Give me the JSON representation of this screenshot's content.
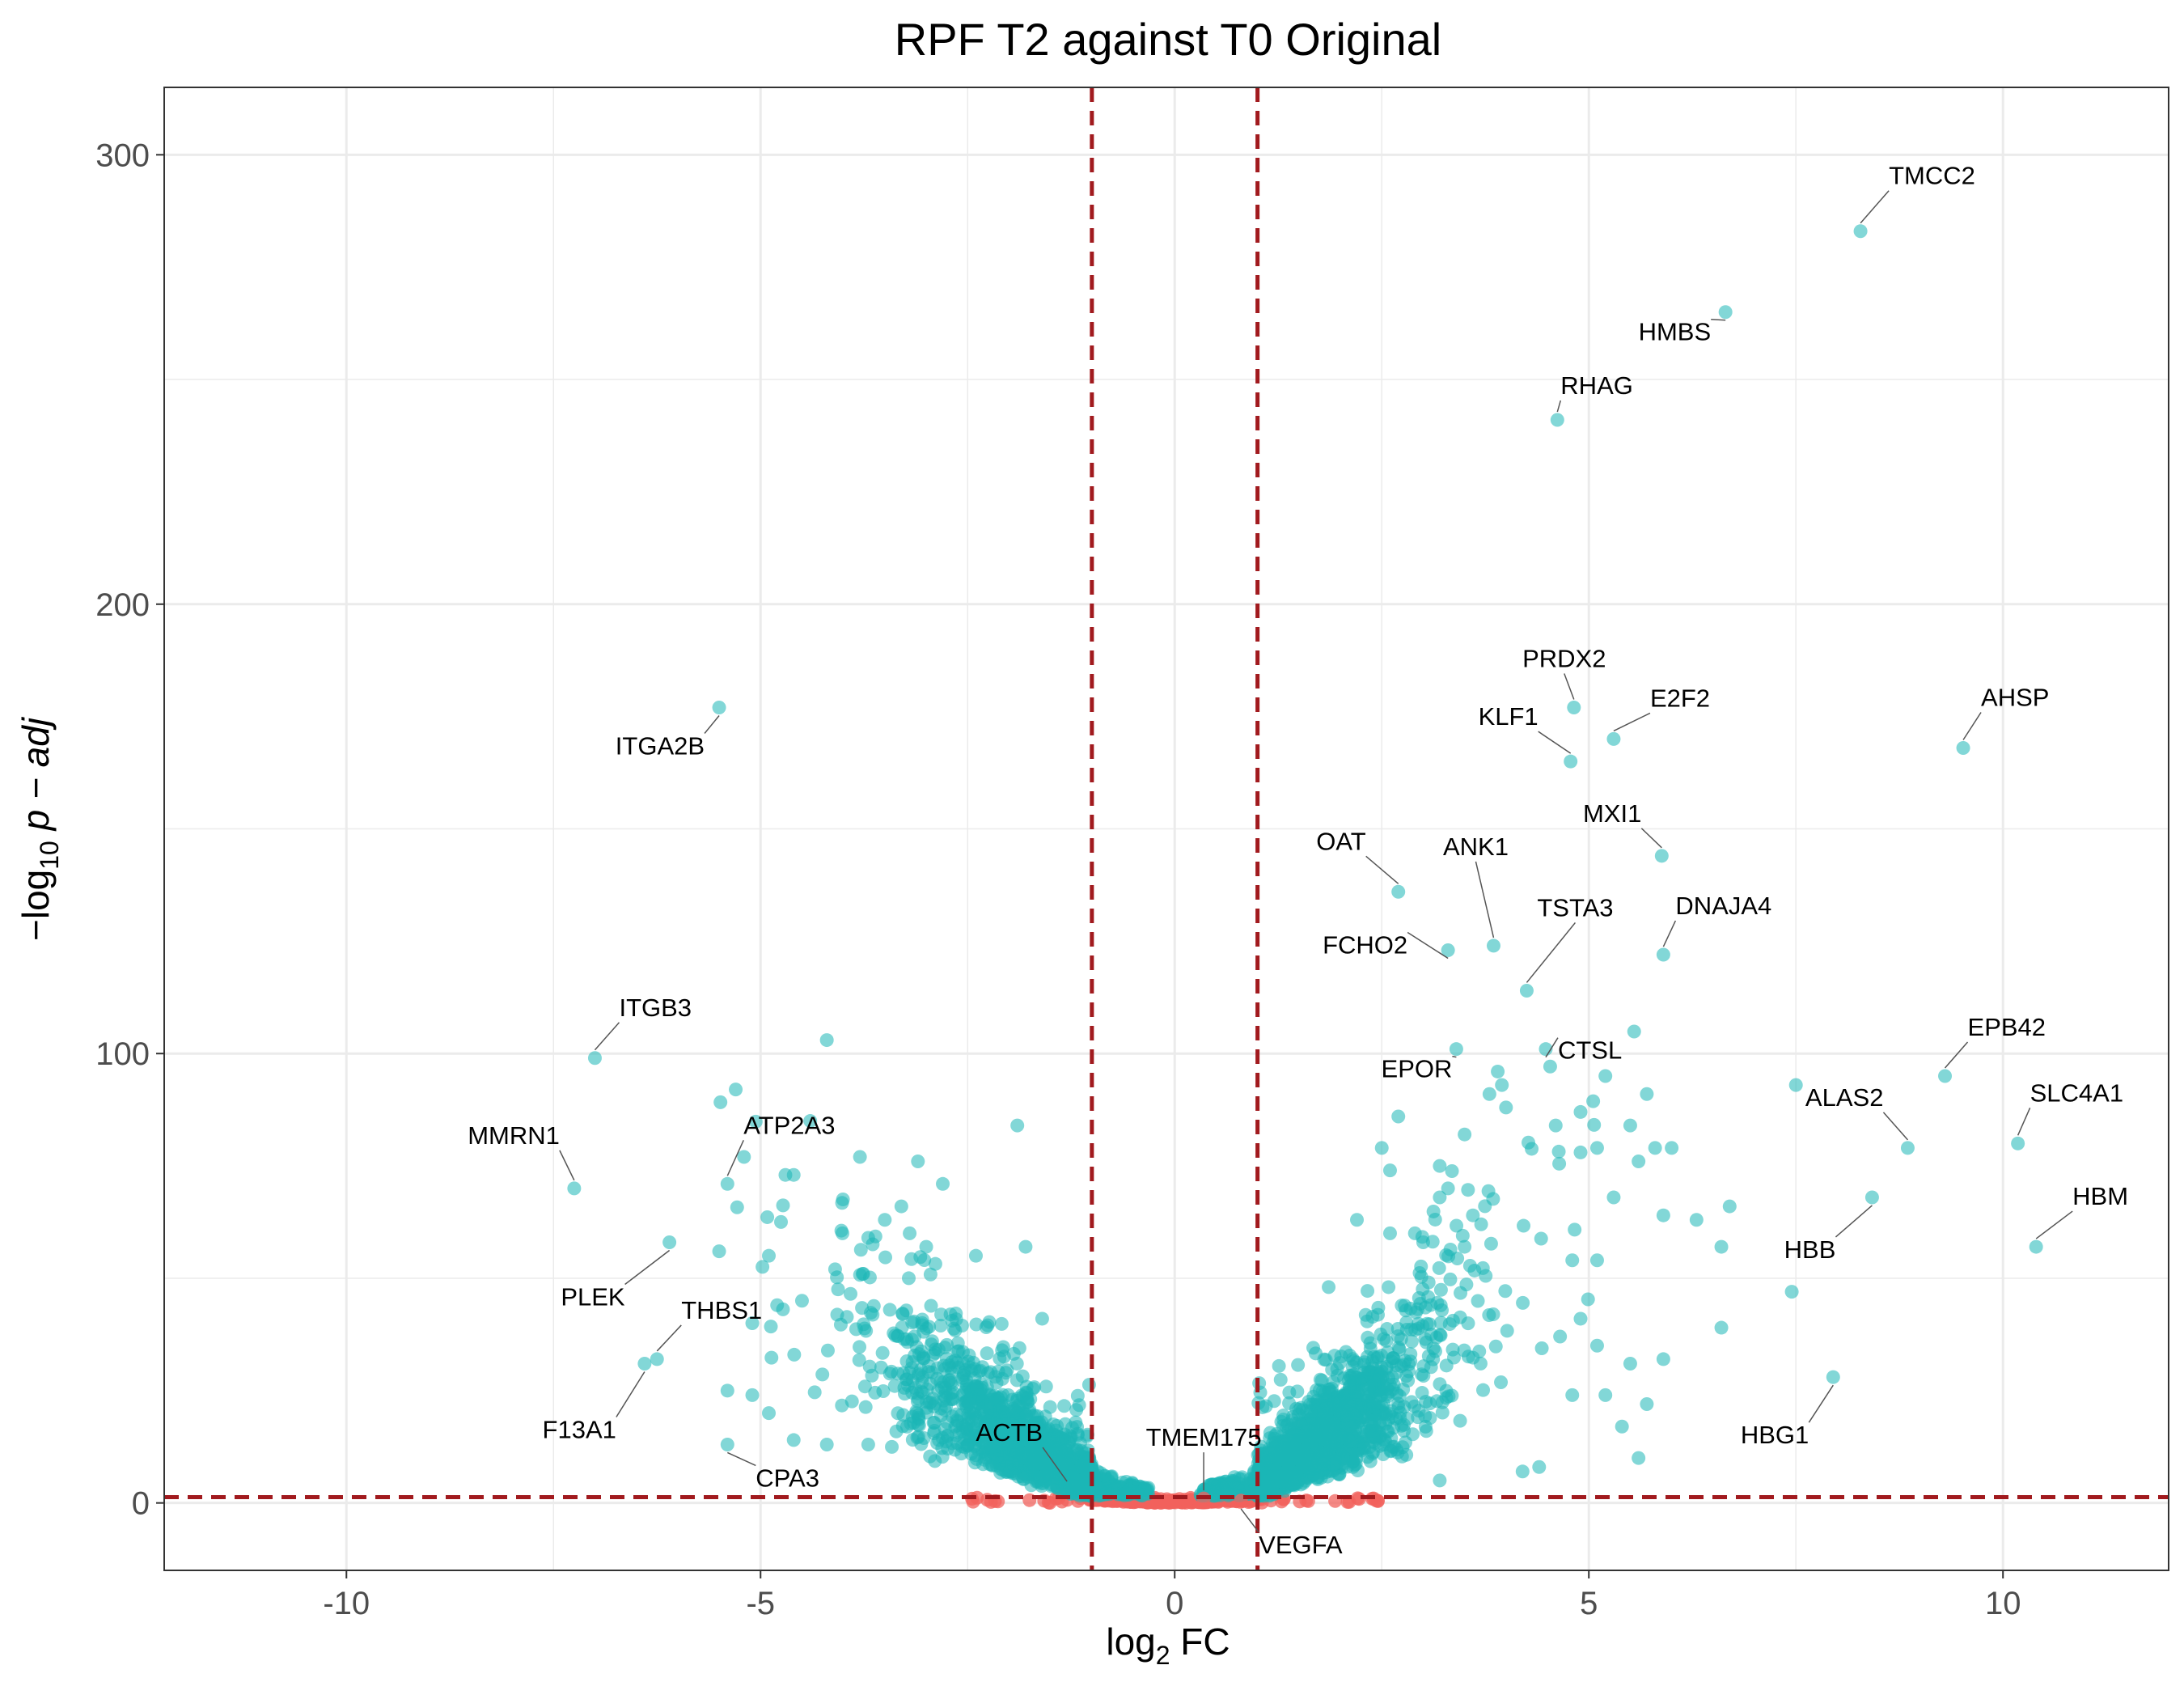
{
  "chart_data": {
    "type": "scatter",
    "title": "RPF T2 against T0 Original",
    "xlabel": {
      "pre": "log",
      "sub": "2",
      "post": " FC"
    },
    "ylabel": {
      "pre": "−log",
      "sub": "10",
      "post": " p − adj"
    },
    "xlim": [
      -12.2,
      12.0
    ],
    "ylim": [
      -15,
      315
    ],
    "x_ticks": [
      -10,
      -5,
      0,
      5,
      10
    ],
    "x_tick_labels": [
      "-10",
      "-5",
      "0",
      "5",
      "10"
    ],
    "y_ticks": [
      0,
      100,
      200,
      300
    ],
    "y_tick_labels": [
      "0",
      "100",
      "200",
      "300"
    ],
    "grid": true,
    "fc_thresholds": [
      -1,
      1
    ],
    "p_threshold": 1.3,
    "colors": {
      "significant": "#1bb6b6",
      "nonsignificant": "#f2615c",
      "threshold_line": "#a11a1e",
      "panel_border": "#333333",
      "grid": "#ebebeb"
    },
    "labeled_points": [
      {
        "gene": "TMCC2",
        "x": 8.28,
        "y": 283
      },
      {
        "gene": "HMBS",
        "x": 6.65,
        "y": 265
      },
      {
        "gene": "RHAG",
        "x": 4.62,
        "y": 241
      },
      {
        "gene": "PRDX2",
        "x": 4.82,
        "y": 177
      },
      {
        "gene": "E2F2",
        "x": 5.3,
        "y": 170
      },
      {
        "gene": "KLF1",
        "x": 4.78,
        "y": 165
      },
      {
        "gene": "AHSP",
        "x": 9.52,
        "y": 168
      },
      {
        "gene": "ITGA2B",
        "x": -5.5,
        "y": 177
      },
      {
        "gene": "MXI1",
        "x": 5.88,
        "y": 144
      },
      {
        "gene": "OAT",
        "x": 2.7,
        "y": 136
      },
      {
        "gene": "ANK1",
        "x": 3.85,
        "y": 124
      },
      {
        "gene": "FCHO2",
        "x": 3.3,
        "y": 123
      },
      {
        "gene": "TSTA3",
        "x": 4.25,
        "y": 114
      },
      {
        "gene": "DNAJA4",
        "x": 5.9,
        "y": 122
      },
      {
        "gene": "EPOR",
        "x": 3.4,
        "y": 101
      },
      {
        "gene": "CTSL",
        "x": 4.48,
        "y": 101
      },
      {
        "gene": "ITGB3",
        "x": -7.0,
        "y": 99
      },
      {
        "gene": "EPB42",
        "x": 9.3,
        "y": 95
      },
      {
        "gene": "ALAS2",
        "x": 8.85,
        "y": 79
      },
      {
        "gene": "SLC4A1",
        "x": 10.18,
        "y": 80
      },
      {
        "gene": "MMRN1",
        "x": -7.25,
        "y": 70
      },
      {
        "gene": "ATP2A3",
        "x": -5.4,
        "y": 71
      },
      {
        "gene": "HBM",
        "x": 10.4,
        "y": 57
      },
      {
        "gene": "HBB",
        "x": 8.42,
        "y": 68
      },
      {
        "gene": "PLEK",
        "x": -6.1,
        "y": 58
      },
      {
        "gene": "THBS1",
        "x": -6.25,
        "y": 32
      },
      {
        "gene": "F13A1",
        "x": -6.4,
        "y": 31
      },
      {
        "gene": "HBG1",
        "x": 7.95,
        "y": 28
      },
      {
        "gene": "CPA3",
        "x": -5.4,
        "y": 13
      },
      {
        "gene": "ACTB",
        "x": -1.3,
        "y": 3
      },
      {
        "gene": "TMEM175",
        "x": 0.35,
        "y": 1
      },
      {
        "gene": "VEGFA",
        "x": 0.8,
        "y": 0.5
      }
    ]
  }
}
